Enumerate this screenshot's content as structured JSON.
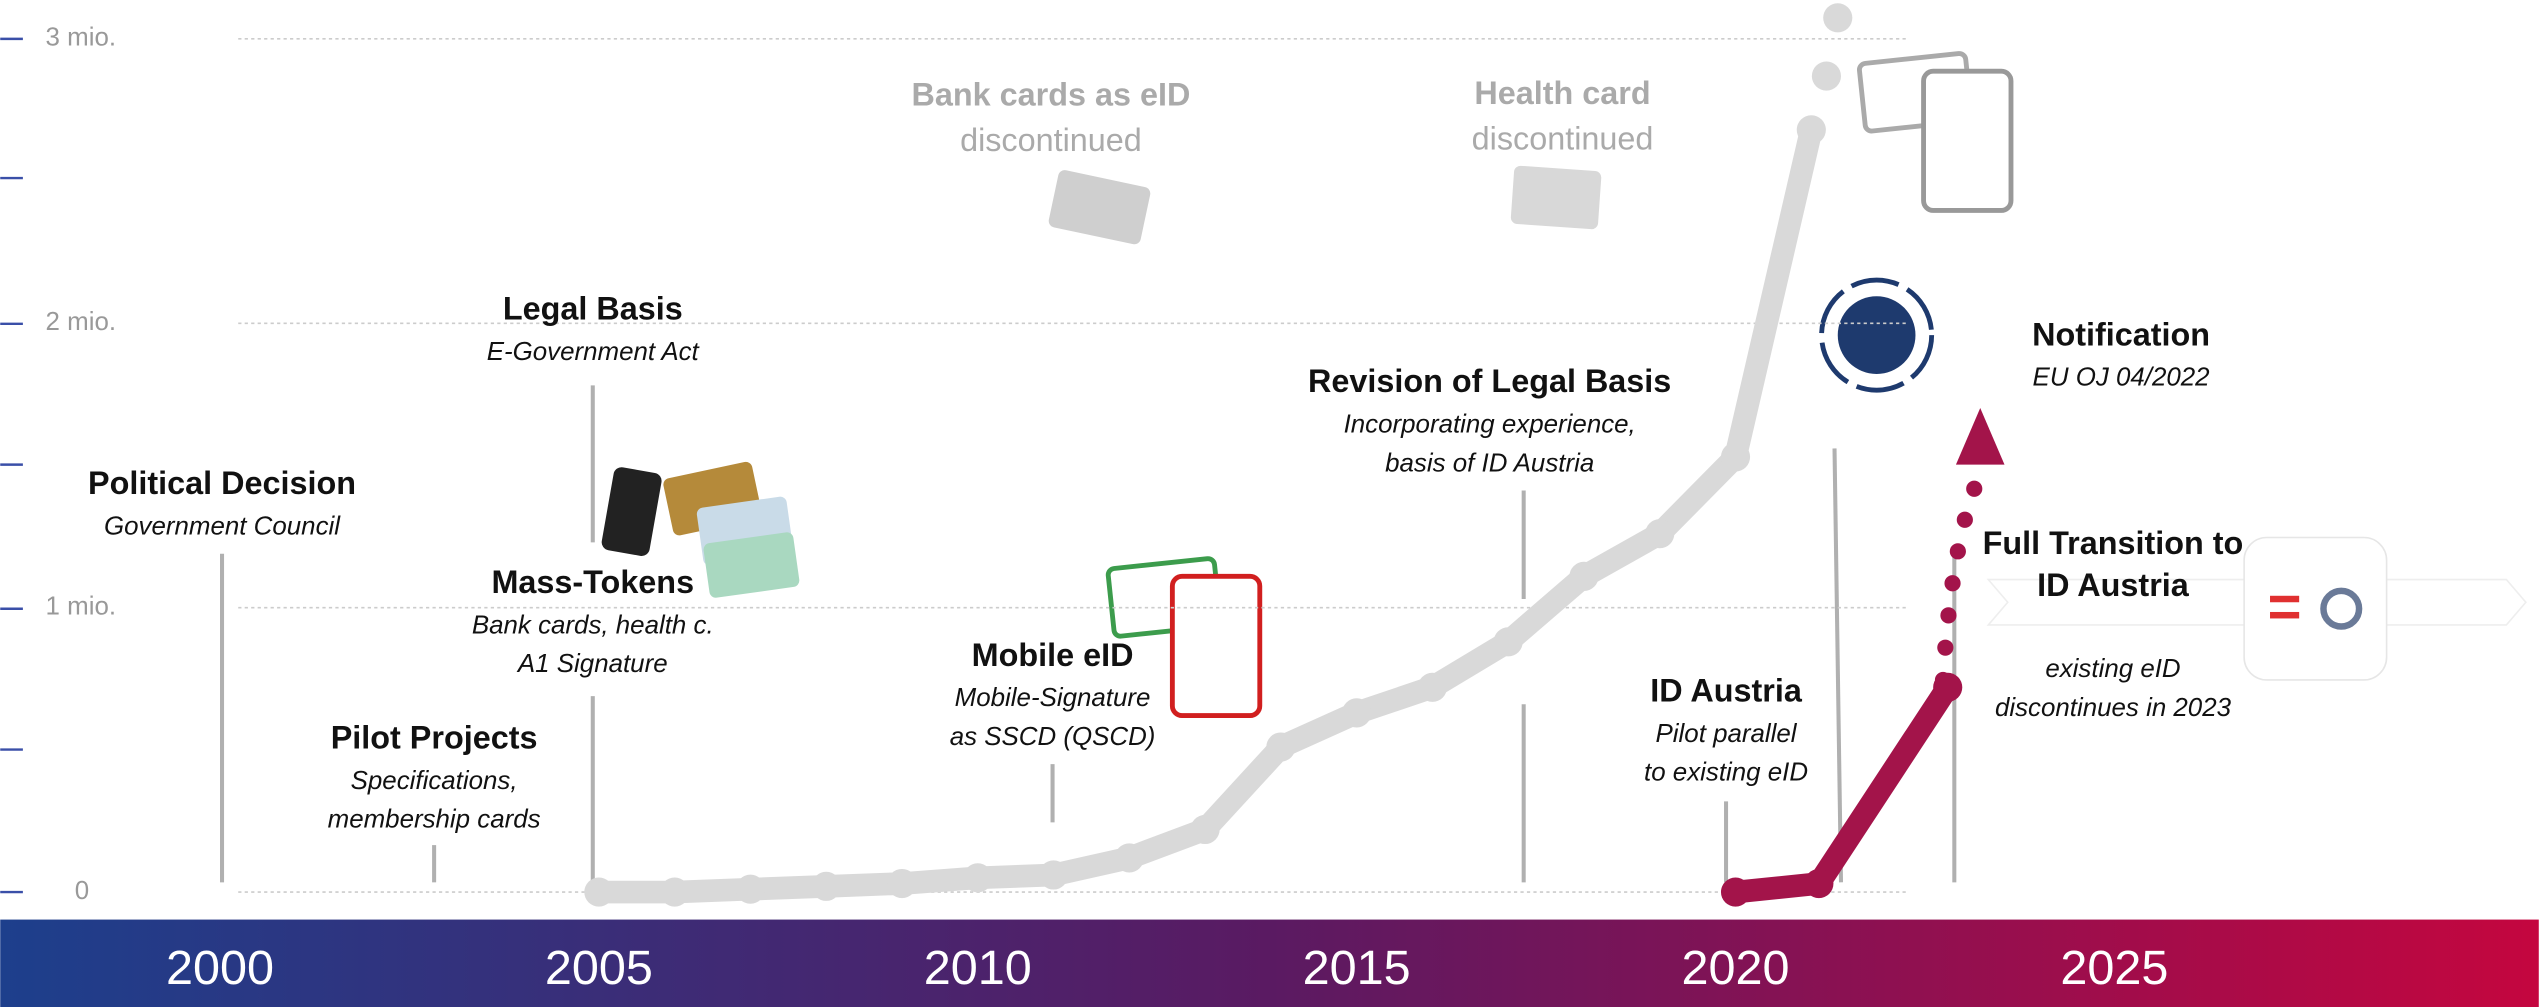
{
  "chart_data": {
    "type": "line",
    "x_label_ticks": [
      2000,
      2005,
      2010,
      2015,
      2020,
      2025
    ],
    "xlim": [
      1997.1,
      2030.6
    ],
    "ylim": [
      0,
      3
    ],
    "yticks": [
      0,
      {
        "value": 1,
        "label": "1 mio."
      },
      {
        "value": 2,
        "label": "2 mio."
      },
      {
        "value": 3,
        "label": "3 mio."
      }
    ],
    "grid": true,
    "series": [
      {
        "color": "#d9d9d9",
        "x": [
          2005,
          2006,
          2007,
          2008,
          2009,
          2010,
          2011,
          2012,
          2013,
          2014,
          2015,
          2016,
          2017,
          2018,
          2019,
          2020,
          2021
        ],
        "values": [
          0,
          0,
          0.01,
          0.02,
          0.03,
          0.05,
          0.06,
          0.12,
          0.22,
          0.51,
          0.63,
          0.72,
          0.88,
          1.11,
          1.26,
          1.53,
          2.68
        ]
      },
      {
        "name": "ID Austria",
        "color": "#a3144a",
        "x": [
          2020,
          2021.1,
          2022.8
        ],
        "values": [
          0,
          0.03,
          0.72
        ]
      }
    ],
    "annotations": [
      {
        "title": "Political Decision",
        "lines": [
          "Government Council"
        ]
      },
      {
        "title": "Pilot Projects",
        "lines": [
          "Specifications,",
          "membership cards"
        ]
      },
      {
        "title": "Legal Basis",
        "lines": [
          "E-Government Act"
        ]
      },
      {
        "title": "Mass-Tokens",
        "lines": [
          "Bank cards, health c.",
          "A1 Signature"
        ]
      },
      {
        "title": "Mobile eID",
        "lines": [
          "Mobile-Signature",
          "as SSCD (QSCD)"
        ]
      },
      {
        "title": "Bank cards as eID",
        "lines": [
          "discontinued"
        ]
      },
      {
        "title": "Health card",
        "lines": [
          "discontinued"
        ]
      },
      {
        "title": "Revision of Legal Basis",
        "lines": [
          "Incorporating experience,",
          "basis of ID Austria"
        ]
      },
      {
        "title": "ID Austria",
        "lines": [
          "Pilot parallel",
          "to existing eID"
        ]
      },
      {
        "title": "Notification",
        "lines": [
          "EU OJ 04/2022"
        ]
      },
      {
        "title": "Full Transition to",
        "lines": [
          "ID Austria"
        ]
      },
      {
        "lines": [
          "existing eID",
          "discontinues in 2023"
        ]
      }
    ]
  }
}
